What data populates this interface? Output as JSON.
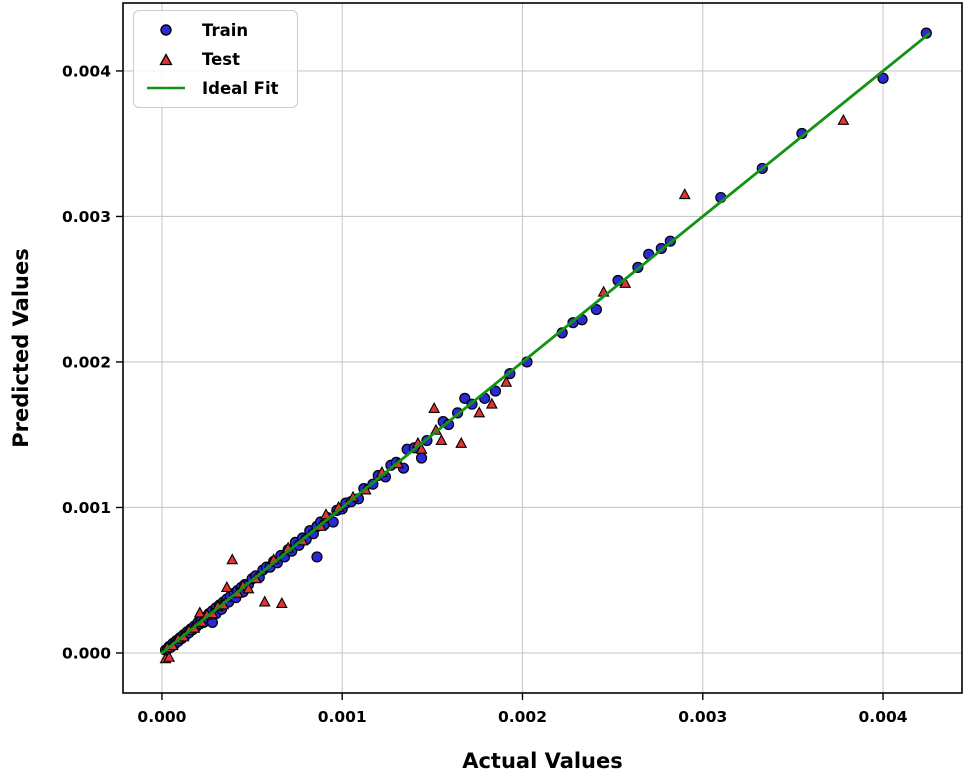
{
  "chart_data": {
    "type": "scatter",
    "title": "",
    "xlabel": "Actual Values",
    "ylabel": "Predicted Values",
    "xlim": [
      -0.000216,
      0.004438
    ],
    "ylim": [
      -0.000275,
      0.004467
    ],
    "x_ticks": [
      0.0,
      0.001,
      0.002,
      0.003,
      0.004
    ],
    "x_tick_labels": [
      "0.000",
      "0.001",
      "0.002",
      "0.003",
      "0.004"
    ],
    "y_ticks": [
      0.0,
      0.001,
      0.002,
      0.003,
      0.004
    ],
    "y_tick_labels": [
      "0.000",
      "0.001",
      "0.002",
      "0.003",
      "0.004"
    ],
    "grid": true,
    "legend_position": "upper-left",
    "colors": {
      "train": "#2a2ad2",
      "test": "#e23333",
      "fit": "#129312",
      "marker_edge": "#000000",
      "grid": "#c9c9c9",
      "spine": "#000000",
      "text": "#000000"
    },
    "legend": [
      {
        "label": "Train",
        "marker": "circle"
      },
      {
        "label": "Test",
        "marker": "triangle"
      },
      {
        "label": "Ideal Fit",
        "marker": "line"
      }
    ],
    "ideal_fit_line": {
      "x": [
        0.0,
        0.004255
      ],
      "y": [
        0.0,
        0.004255
      ]
    },
    "series": [
      {
        "name": "Train",
        "marker": "circle",
        "points": [
          [
            2e-05,
            2e-05
          ],
          [
            3e-05,
            2.5e-05
          ],
          [
            4e-05,
            4.5e-05
          ],
          [
            5e-05,
            4e-05
          ],
          [
            6e-05,
            6.5e-05
          ],
          [
            7e-05,
            6e-05
          ],
          [
            8e-05,
            8.5e-05
          ],
          [
            9e-05,
            8e-05
          ],
          [
            0.0001,
            0.000105
          ],
          [
            0.00011,
            0.0001
          ],
          [
            0.00012,
            0.000125
          ],
          [
            0.00013,
            0.00012
          ],
          [
            0.00014,
            0.000145
          ],
          [
            0.00015,
            0.00014
          ],
          [
            0.00016,
            0.000165
          ],
          [
            0.00017,
            0.00016
          ],
          [
            0.00018,
            0.000185
          ],
          [
            0.00019,
            0.00018
          ],
          [
            0.0002,
            0.00021
          ],
          [
            0.00021,
            0.0002
          ],
          [
            0.00022,
            0.000225
          ],
          [
            0.00023,
            0.00021
          ],
          [
            0.00024,
            0.000245
          ],
          [
            0.00025,
            0.00024
          ],
          [
            0.00026,
            0.00027
          ],
          [
            0.00027,
            0.00025
          ],
          [
            0.00028,
            0.00021
          ],
          [
            0.00028,
            0.00029
          ],
          [
            0.0003,
            0.00031
          ],
          [
            0.0003,
            0.00027
          ],
          [
            0.00032,
            0.00033
          ],
          [
            0.00033,
            0.0003
          ],
          [
            0.00034,
            0.00035
          ],
          [
            0.00035,
            0.00034
          ],
          [
            0.00036,
            0.00037
          ],
          [
            0.00037,
            0.00035
          ],
          [
            0.00038,
            0.00039
          ],
          [
            0.0004,
            0.00041
          ],
          [
            0.00041,
            0.00038
          ],
          [
            0.00042,
            0.00043
          ],
          [
            0.00044,
            0.00045
          ],
          [
            0.00045,
            0.00042
          ],
          [
            0.00046,
            0.00047
          ],
          [
            0.00048,
            0.00047
          ],
          [
            0.0005,
            0.00051
          ],
          [
            0.00052,
            0.00053
          ],
          [
            0.00054,
            0.00052
          ],
          [
            0.00056,
            0.00057
          ],
          [
            0.00058,
            0.00059
          ],
          [
            0.0006,
            0.00059
          ],
          [
            0.00062,
            0.00063
          ],
          [
            0.00064,
            0.00062
          ],
          [
            0.00066,
            0.00067
          ],
          [
            0.00068,
            0.00066
          ],
          [
            0.0007,
            0.00071
          ],
          [
            0.00072,
            0.0007
          ],
          [
            0.00074,
            0.00076
          ],
          [
            0.00076,
            0.00074
          ],
          [
            0.00078,
            0.00079
          ],
          [
            0.0008,
            0.00078
          ],
          [
            0.00082,
            0.00084
          ],
          [
            0.00084,
            0.00082
          ],
          [
            0.00086,
            0.00066
          ],
          [
            0.00086,
            0.00087
          ],
          [
            0.00088,
            0.0009
          ],
          [
            0.0009,
            0.00088
          ],
          [
            0.00092,
            0.00093
          ],
          [
            0.00095,
            0.0009
          ],
          [
            0.00097,
            0.00098
          ],
          [
            0.001,
            0.00099
          ],
          [
            0.00102,
            0.00103
          ],
          [
            0.00105,
            0.00104
          ],
          [
            0.00109,
            0.00106
          ],
          [
            0.00112,
            0.00113
          ],
          [
            0.00117,
            0.00116
          ],
          [
            0.0012,
            0.00122
          ],
          [
            0.00124,
            0.00121
          ],
          [
            0.00127,
            0.00129
          ],
          [
            0.0013,
            0.00131
          ],
          [
            0.00134,
            0.00127
          ],
          [
            0.00136,
            0.0014
          ],
          [
            0.0014,
            0.00141
          ],
          [
            0.00144,
            0.00134
          ],
          [
            0.00147,
            0.00146
          ],
          [
            0.00156,
            0.00159
          ],
          [
            0.00159,
            0.00157
          ],
          [
            0.00164,
            0.00165
          ],
          [
            0.00168,
            0.00175
          ],
          [
            0.00172,
            0.00171
          ],
          [
            0.00179,
            0.00175
          ],
          [
            0.00185,
            0.0018
          ],
          [
            0.00193,
            0.00192
          ],
          [
            0.002025,
            0.002
          ],
          [
            0.00222,
            0.0022
          ],
          [
            0.00228,
            0.00227
          ],
          [
            0.00233,
            0.00229
          ],
          [
            0.00241,
            0.00236
          ],
          [
            0.00253,
            0.00256
          ],
          [
            0.00264,
            0.00265
          ],
          [
            0.0027,
            0.00274
          ],
          [
            0.00277,
            0.00278
          ],
          [
            0.00282,
            0.00283
          ],
          [
            0.0031,
            0.00313
          ],
          [
            0.00333,
            0.00333
          ],
          [
            0.00355,
            0.00357
          ],
          [
            0.004,
            0.00395
          ],
          [
            0.00424,
            0.00426
          ]
        ]
      },
      {
        "name": "Test",
        "marker": "triangle",
        "points": [
          [
            2e-05,
            -4e-05
          ],
          [
            4e-05,
            -3e-05
          ],
          [
            3e-05,
            3.5e-05
          ],
          [
            6e-05,
            5e-05
          ],
          [
            9e-05,
            9.5e-05
          ],
          [
            0.00012,
            0.00011
          ],
          [
            0.00015,
            0.000155
          ],
          [
            0.00018,
            0.00017
          ],
          [
            0.00021,
            0.000275
          ],
          [
            0.00022,
            0.00021
          ],
          [
            0.00025,
            0.00026
          ],
          [
            0.00028,
            0.00027
          ],
          [
            0.00031,
            0.00032
          ],
          [
            0.00034,
            0.00033
          ],
          [
            0.00036,
            0.00045
          ],
          [
            0.00039,
            0.00064
          ],
          [
            0.00042,
            0.00041
          ],
          [
            0.00045,
            0.00046
          ],
          [
            0.00048,
            0.00044
          ],
          [
            0.00052,
            0.00051
          ],
          [
            0.00057,
            0.00035
          ],
          [
            0.000665,
            0.00034
          ],
          [
            0.00062,
            0.00064
          ],
          [
            0.0007,
            0.00072
          ],
          [
            0.00078,
            0.00077
          ],
          [
            0.00088,
            0.00087
          ],
          [
            0.00091,
            0.00095
          ],
          [
            0.00098,
            0.001
          ],
          [
            0.00106,
            0.00107
          ],
          [
            0.00113,
            0.00112
          ],
          [
            0.00122,
            0.00124
          ],
          [
            0.00131,
            0.0013
          ],
          [
            0.00142,
            0.00144
          ],
          [
            0.00144,
            0.0014
          ],
          [
            0.00151,
            0.00168
          ],
          [
            0.00152,
            0.00153
          ],
          [
            0.00155,
            0.00146
          ],
          [
            0.00166,
            0.00144
          ],
          [
            0.00176,
            0.00165
          ],
          [
            0.00183,
            0.00171
          ],
          [
            0.00191,
            0.00186
          ],
          [
            0.00245,
            0.00248
          ],
          [
            0.00257,
            0.00254
          ],
          [
            0.0029,
            0.00315
          ],
          [
            0.00378,
            0.00366
          ]
        ]
      }
    ]
  }
}
